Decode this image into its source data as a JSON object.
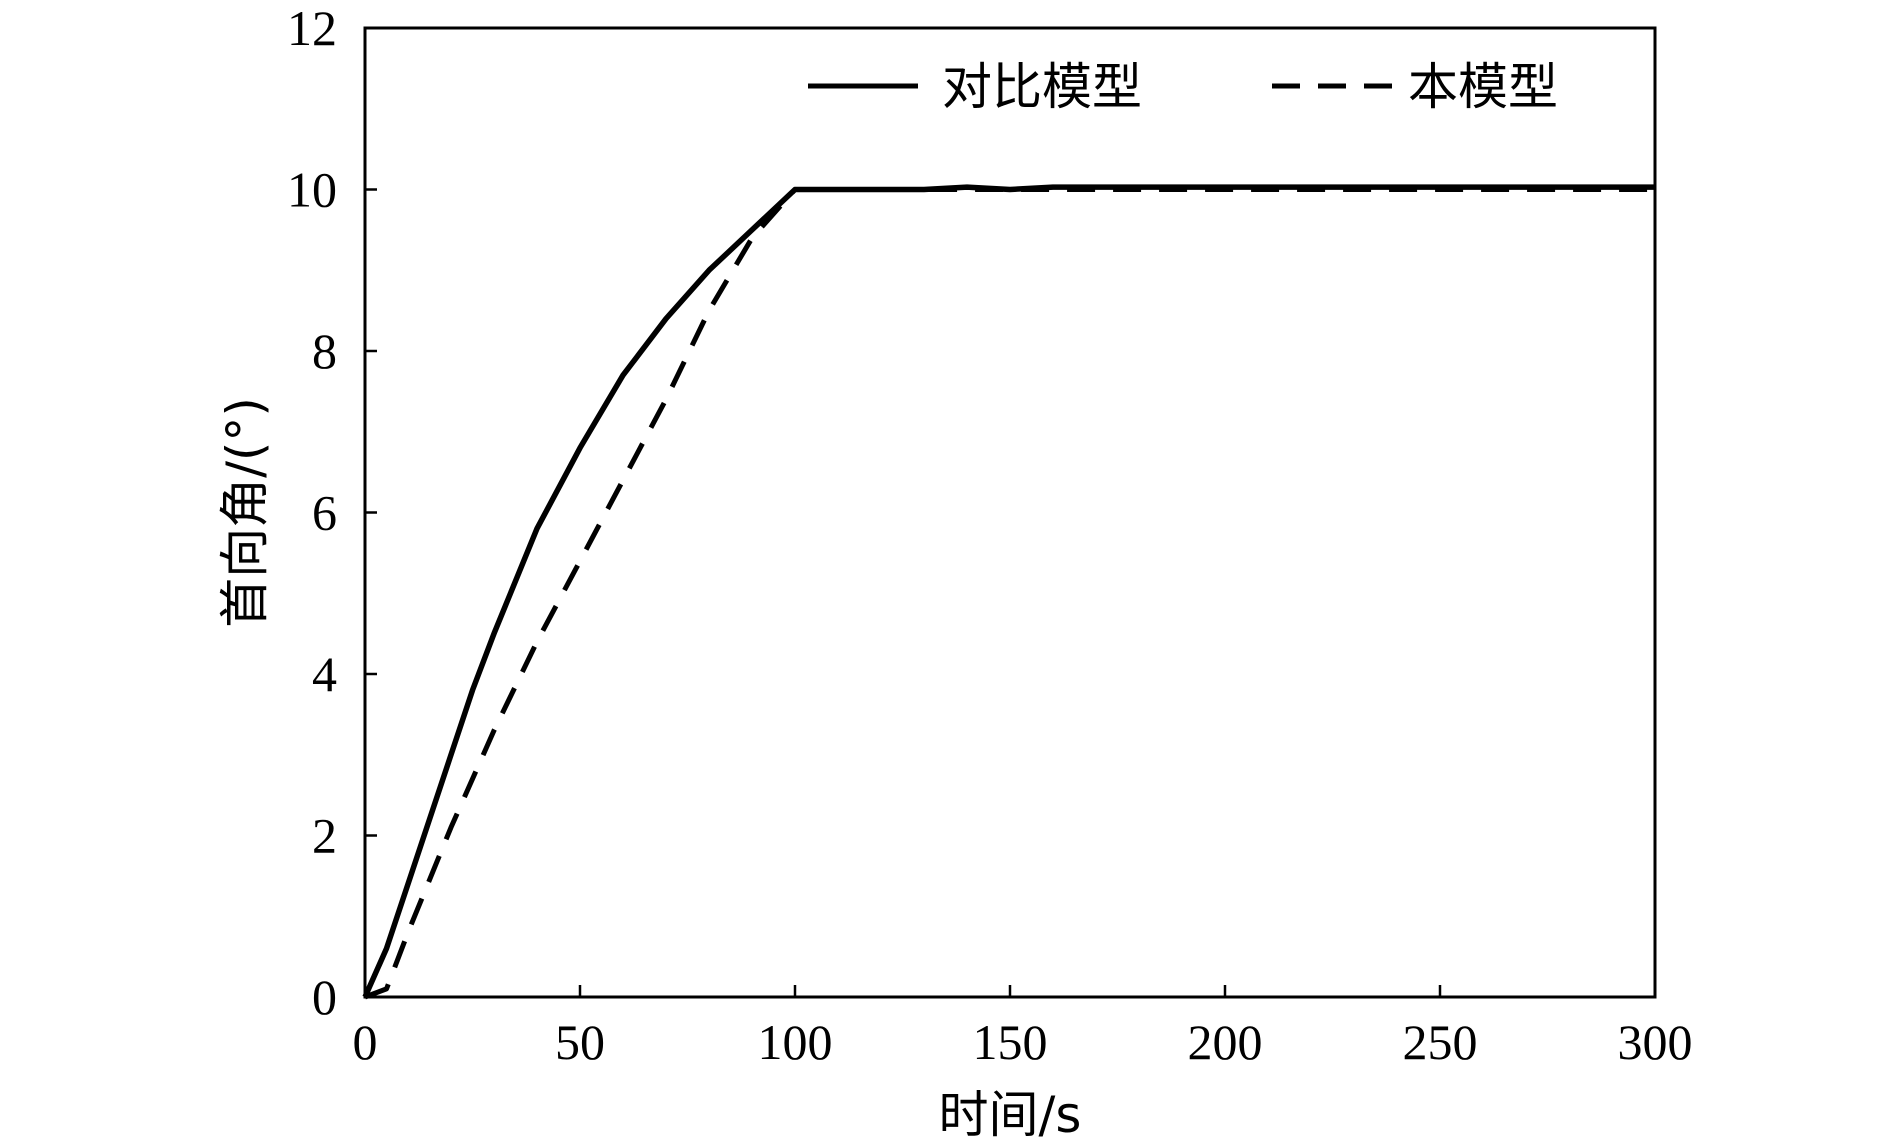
{
  "chart_data": {
    "type": "line",
    "xlabel": "时间/s",
    "ylabel": "首向角/(°)",
    "xlim": [
      0,
      300
    ],
    "ylim": [
      0,
      12
    ],
    "xticks": [
      0,
      50,
      100,
      150,
      200,
      250,
      300
    ],
    "yticks": [
      0,
      2,
      4,
      6,
      8,
      10,
      12
    ],
    "grid": false,
    "legend_position": "top-right",
    "series": [
      {
        "name": "对比模型",
        "style": "solid",
        "color": "#000000",
        "x": [
          0,
          5,
          10,
          15,
          20,
          25,
          30,
          40,
          50,
          60,
          70,
          80,
          90,
          100,
          110,
          120,
          130,
          140,
          150,
          160,
          200,
          250,
          300
        ],
        "y": [
          0,
          0.6,
          1.4,
          2.2,
          3.0,
          3.8,
          4.5,
          5.8,
          6.8,
          7.7,
          8.4,
          9.0,
          9.5,
          10.0,
          10.0,
          10.0,
          10.0,
          10.03,
          10.0,
          10.03,
          10.03,
          10.03,
          10.03
        ]
      },
      {
        "name": "本模型",
        "style": "dashed",
        "color": "#000000",
        "x": [
          0,
          5,
          10,
          20,
          30,
          40,
          50,
          60,
          70,
          80,
          90,
          100,
          110,
          120,
          150,
          200,
          250,
          300
        ],
        "y": [
          0,
          0.1,
          0.8,
          2.1,
          3.3,
          4.4,
          5.4,
          6.4,
          7.4,
          8.5,
          9.4,
          10.0,
          10.0,
          10.0,
          10.0,
          10.0,
          10.0,
          10.0
        ]
      }
    ]
  }
}
